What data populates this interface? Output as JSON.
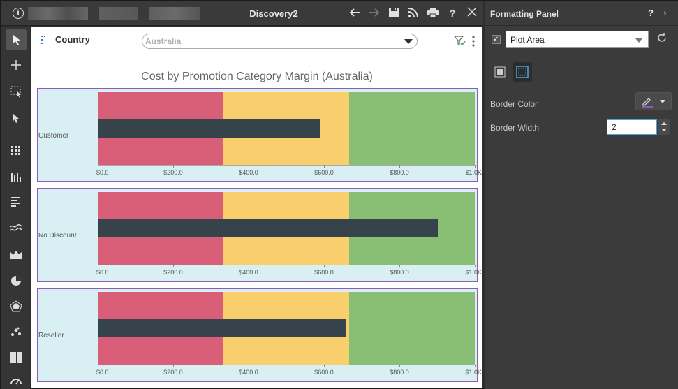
{
  "window": {
    "title": "Discovery2"
  },
  "filter": {
    "label": "Country",
    "selected": "Australia"
  },
  "chart_data": {
    "type": "bar",
    "subtype": "bullet",
    "title": "Cost by Promotion Category Margin (Australia)",
    "categories": [
      "Customer",
      "No Discount",
      "Reseller"
    ],
    "values": [
      590,
      902,
      660
    ],
    "xlim": [
      0,
      1000
    ],
    "ticks": [
      "$0.0",
      "$200.0",
      "$400.0",
      "$600.0",
      "$800.0",
      "$1.0K"
    ],
    "bands": [
      {
        "from": 0,
        "to": 333,
        "color": "#d95f78"
      },
      {
        "from": 333,
        "to": 667,
        "color": "#f9ce6c"
      },
      {
        "from": 667,
        "to": 1000,
        "color": "#88bf75"
      }
    ],
    "bar_color": "#37434a",
    "plot_background": "#d8f0f3",
    "plot_border_color": "#8e5cb5"
  },
  "formatting_panel": {
    "title": "Formatting Panel",
    "help": "?",
    "element_selected": "Plot Area",
    "border_color_label": "Border Color",
    "border_width_label": "Border Width",
    "border_width_value": "2"
  }
}
